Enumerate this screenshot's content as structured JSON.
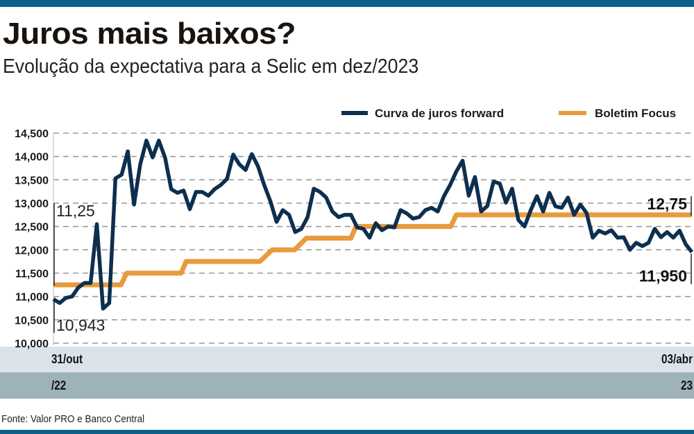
{
  "title": "Juros mais baixos?",
  "subtitle": "Evolução da expectativa para a Selic em dez/2023",
  "source": "Fonte: Valor PRO e Banco Central",
  "colors": {
    "forward": "#0d2f4f",
    "focus": "#e89a3c",
    "brand": "#0e5f8a"
  },
  "chart_data": {
    "type": "line",
    "title": "Juros mais baixos?",
    "subtitle": "Evolução da expectativa para a Selic em dez/2023",
    "xlabel": "",
    "ylabel": "",
    "ylim": [
      10000,
      14500
    ],
    "grid": true,
    "legend_position": "top-right",
    "yticks": [
      "14,500",
      "14,000",
      "13,500",
      "13,000",
      "12,500",
      "12,000",
      "11,500",
      "11,000",
      "10,500",
      "10,000"
    ],
    "ytick_values": [
      14500,
      14000,
      13500,
      13000,
      12500,
      12000,
      11500,
      11000,
      10500,
      10000
    ],
    "x_start": {
      "day": "31/out",
      "year": "/22"
    },
    "x_end": {
      "day": "03/abr",
      "year": "23"
    },
    "series": [
      {
        "name": "Curva de juros forward",
        "values": [
          10943,
          10860,
          10970,
          11000,
          11190,
          11290,
          11290,
          12550,
          10740,
          10860,
          13530,
          13610,
          14110,
          12970,
          13830,
          14340,
          13980,
          14340,
          13980,
          13300,
          13220,
          13270,
          12870,
          13240,
          13240,
          13160,
          13300,
          13390,
          13520,
          14040,
          13830,
          13710,
          14050,
          13790,
          13390,
          13040,
          12600,
          12850,
          12750,
          12380,
          12450,
          12700,
          13310,
          13240,
          13120,
          12820,
          12700,
          12750,
          12750,
          12480,
          12450,
          12260,
          12570,
          12420,
          12500,
          12480,
          12850,
          12780,
          12670,
          12700,
          12850,
          12900,
          12820,
          13150,
          13390,
          13680,
          13910,
          13160,
          13560,
          12820,
          12940,
          13460,
          13420,
          13010,
          13310,
          12640,
          12500,
          12850,
          13150,
          12820,
          13220,
          12930,
          12900,
          13120,
          12750,
          12970,
          12790,
          12260,
          12410,
          12350,
          12420,
          12260,
          12270,
          12000,
          12150,
          12080,
          12150,
          12450,
          12270,
          12380,
          12260,
          12410,
          12120,
          11950
        ]
      },
      {
        "name": "Boletim Focus",
        "unit_scale": 1000,
        "steps": [
          [
            0,
            11.25
          ],
          [
            10.9,
            11.25
          ],
          [
            11.8,
            11.5
          ],
          [
            20.6,
            11.5
          ],
          [
            21.4,
            11.75
          ],
          [
            33.3,
            11.75
          ],
          [
            35.3,
            12.0
          ],
          [
            38.9,
            12.0
          ],
          [
            40.8,
            12.25
          ],
          [
            48,
            12.25
          ],
          [
            48.8,
            12.5
          ],
          [
            64.1,
            12.5
          ],
          [
            65,
            12.75
          ],
          [
            103,
            12.75
          ]
        ]
      }
    ],
    "annotations": {
      "focus_start": "11,25",
      "forward_start": "10,943",
      "focus_end": "12,75",
      "forward_end": "11,950"
    }
  }
}
